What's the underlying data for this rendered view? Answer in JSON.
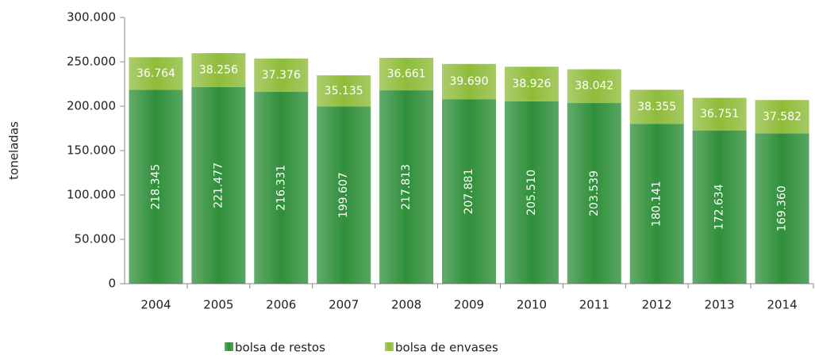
{
  "chart_data": {
    "type": "bar",
    "stacked": true,
    "y_label": "toneladas",
    "categories": [
      "2004",
      "2005",
      "2006",
      "2007",
      "2008",
      "2009",
      "2010",
      "2011",
      "2012",
      "2013",
      "2014"
    ],
    "series": [
      {
        "name": "bolsa de restos",
        "color": "#2f8f3a",
        "values": [
          218345,
          221477,
          216331,
          199607,
          217813,
          207881,
          205510,
          203539,
          180141,
          172634,
          169360
        ],
        "value_labels": [
          "218.345",
          "221.477",
          "216.331",
          "199.607",
          "217.813",
          "207.881",
          "205.510",
          "203.539",
          "180.141",
          "172.634",
          "169.360"
        ]
      },
      {
        "name": "bolsa de envases",
        "color": "#8fbc3a",
        "values": [
          36764,
          38256,
          37376,
          35135,
          36661,
          39690,
          38926,
          38042,
          38355,
          36751,
          37582
        ],
        "value_labels": [
          "36.764",
          "38.256",
          "37.376",
          "35.135",
          "36.661",
          "39.690",
          "38.926",
          "38.042",
          "38.355",
          "36.751",
          "37.582"
        ]
      }
    ],
    "ylim": [
      0,
      300000
    ],
    "yticks": [
      0,
      {
        "value": 50000,
        "label": "50.000"
      },
      {
        "value": 100000,
        "label": "100.000"
      },
      {
        "value": 150000,
        "label": "150.000"
      },
      {
        "value": 200000,
        "label": "200.000"
      },
      {
        "value": 250000,
        "label": "250.000"
      },
      {
        "value": 300000,
        "label": "300.000"
      }
    ],
    "legend": "bottom"
  }
}
